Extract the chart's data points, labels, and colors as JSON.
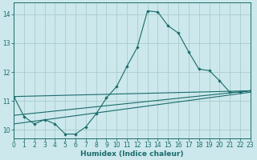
{
  "xlabel": "Humidex (Indice chaleur)",
  "background_color": "#cce8ec",
  "grid_color": "#aacccc",
  "line_color": "#1a6b6b",
  "x_values": [
    0,
    1,
    2,
    3,
    4,
    5,
    6,
    7,
    8,
    9,
    10,
    11,
    12,
    13,
    14,
    15,
    16,
    17,
    18,
    19,
    20,
    21,
    22,
    23
  ],
  "line_main": [
    11.15,
    10.45,
    10.2,
    10.35,
    10.2,
    9.85,
    9.85,
    10.1,
    10.55,
    11.1,
    11.5,
    12.2,
    12.85,
    14.12,
    14.08,
    13.6,
    13.35,
    12.7,
    12.1,
    12.05,
    11.7,
    11.3,
    11.3,
    11.35
  ],
  "line_trend1_x": [
    0,
    23
  ],
  "line_trend1_y": [
    11.15,
    11.35
  ],
  "line_trend2_x": [
    0,
    23
  ],
  "line_trend2_y": [
    10.5,
    11.35
  ],
  "line_trend3_x": [
    0,
    23
  ],
  "line_trend3_y": [
    10.2,
    11.3
  ],
  "ylim": [
    9.7,
    14.4
  ],
  "xlim": [
    0,
    23
  ],
  "yticks": [
    10,
    11,
    12,
    13,
    14
  ],
  "xticks": [
    0,
    1,
    2,
    3,
    4,
    5,
    6,
    7,
    8,
    9,
    10,
    11,
    12,
    13,
    14,
    15,
    16,
    17,
    18,
    19,
    20,
    21,
    22,
    23
  ],
  "tick_fontsize": 5.5,
  "xlabel_fontsize": 6.5
}
